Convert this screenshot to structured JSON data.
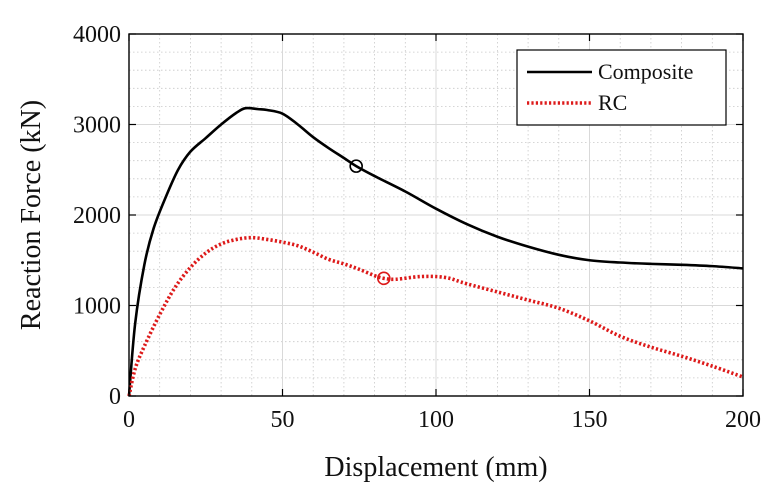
{
  "chart_data": {
    "type": "line",
    "title": "",
    "xlabel": "Displacement (mm)",
    "ylabel": "Reaction Force (kN)",
    "xlim": [
      0,
      200
    ],
    "ylim": [
      0,
      4000
    ],
    "xticks": [
      0,
      50,
      100,
      150,
      200
    ],
    "yticks": [
      0,
      1000,
      2000,
      3000,
      4000
    ],
    "xtick_labels": [
      "0",
      "50",
      "100",
      "150",
      "200"
    ],
    "ytick_labels": [
      "0",
      "1000",
      "2000",
      "3000",
      "4000"
    ],
    "grid": true,
    "minor_grid": true,
    "legend_position": "top-right",
    "series": [
      {
        "name": "Composite",
        "color": "#000000",
        "style": "solid",
        "x": [
          0,
          2,
          5,
          8,
          12,
          16,
          20,
          25,
          30,
          35,
          38,
          42,
          45,
          50,
          55,
          60,
          65,
          70,
          74,
          80,
          90,
          100,
          110,
          120,
          130,
          140,
          150,
          160,
          170,
          180,
          190,
          200
        ],
        "y": [
          0,
          800,
          1450,
          1850,
          2200,
          2500,
          2700,
          2850,
          3000,
          3130,
          3180,
          3170,
          3160,
          3120,
          3000,
          2860,
          2740,
          2630,
          2540,
          2430,
          2260,
          2070,
          1900,
          1760,
          1650,
          1560,
          1500,
          1475,
          1460,
          1450,
          1435,
          1410
        ]
      },
      {
        "name": "RC",
        "color": "#dd1a1a",
        "style": "dotted",
        "x": [
          0,
          2,
          5,
          10,
          15,
          20,
          25,
          30,
          35,
          40,
          45,
          50,
          55,
          60,
          65,
          70,
          75,
          80,
          83,
          87,
          95,
          103,
          110,
          120,
          130,
          140,
          150,
          160,
          170,
          180,
          190,
          200
        ],
        "y": [
          0,
          300,
          550,
          900,
          1200,
          1420,
          1580,
          1680,
          1730,
          1750,
          1730,
          1700,
          1660,
          1590,
          1510,
          1460,
          1400,
          1330,
          1300,
          1290,
          1320,
          1310,
          1240,
          1150,
          1060,
          970,
          830,
          660,
          540,
          440,
          330,
          210
        ]
      }
    ],
    "markers": [
      {
        "series": "Composite",
        "x": 74,
        "y": 2540,
        "shape": "circle",
        "color": "#000000"
      },
      {
        "series": "RC",
        "x": 83,
        "y": 1300,
        "shape": "circle",
        "color": "#dd1a1a"
      }
    ]
  }
}
